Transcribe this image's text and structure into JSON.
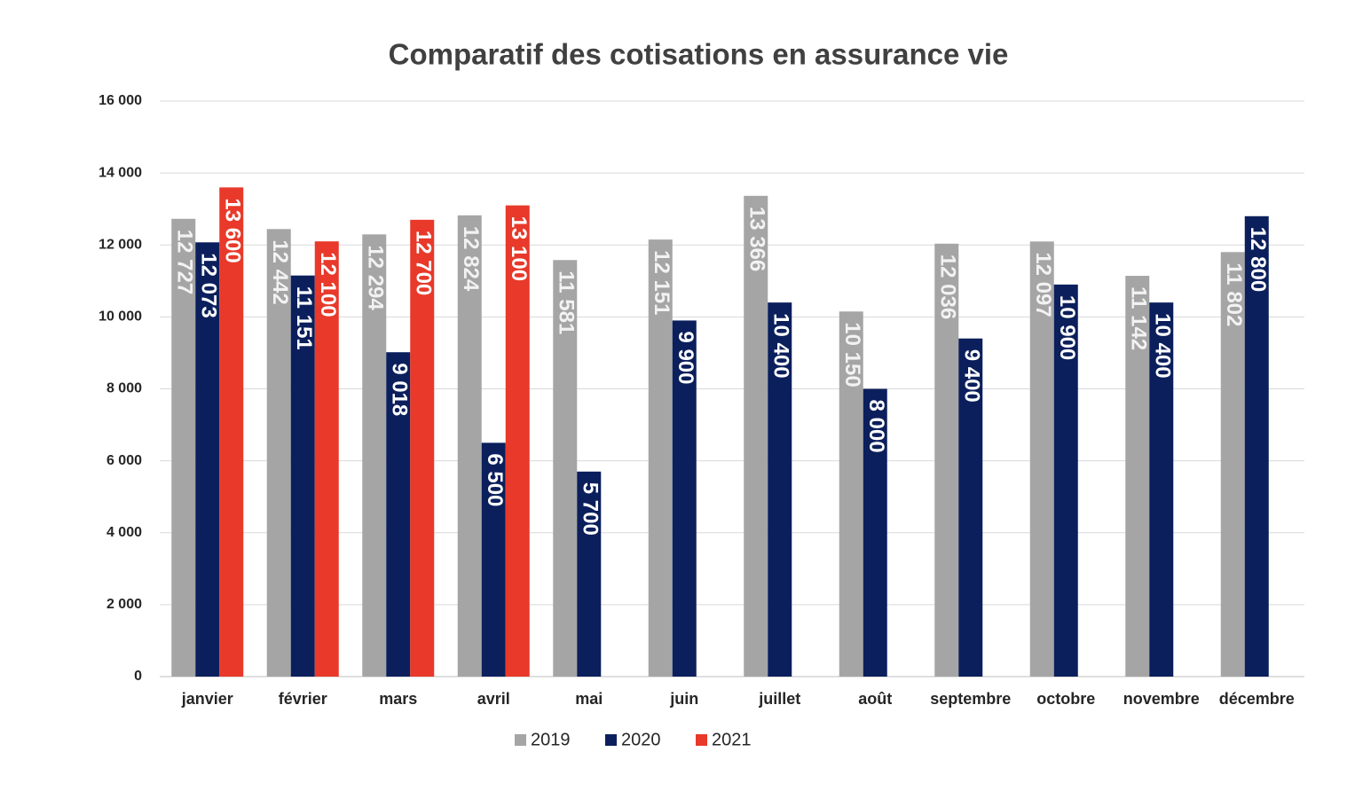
{
  "chart_data": {
    "type": "bar",
    "title": "Comparatif des cotisations en assurance vie",
    "categories": [
      "janvier",
      "février",
      "mars",
      "avril",
      "mai",
      "juin",
      "juillet",
      "août",
      "septembre",
      "octobre",
      "novembre",
      "décembre"
    ],
    "series": [
      {
        "name": "2019",
        "color": "#a5a5a5",
        "values": [
          12727,
          12442,
          12294,
          12824,
          11581,
          12151,
          13366,
          10150,
          12036,
          12097,
          11142,
          11802
        ],
        "value_labels": [
          "12 727",
          "12 442",
          "12 294",
          "12 824",
          "11 581",
          "12 151",
          "13 366",
          "10 150",
          "12 036",
          "12 097",
          "11 142",
          "11 802"
        ]
      },
      {
        "name": "2020",
        "color": "#0b1f5c",
        "values": [
          12073,
          11151,
          9018,
          6500,
          5700,
          9900,
          10400,
          8000,
          9400,
          10900,
          10400,
          12800
        ],
        "value_labels": [
          "12 073",
          "11 151",
          "9 018",
          "6 500",
          "5 700",
          "9 900",
          "10 400",
          "8 000",
          "9 400",
          "10 900",
          "10 400",
          "12 800"
        ]
      },
      {
        "name": "2021",
        "color": "#e8392a",
        "values": [
          13600,
          12100,
          12700,
          13100,
          null,
          null,
          null,
          null,
          null,
          null,
          null,
          null
        ],
        "value_labels": [
          "13 600",
          "12 100",
          "12 700",
          "13 100",
          null,
          null,
          null,
          null,
          null,
          null,
          null,
          null
        ]
      }
    ],
    "ylim": [
      0,
      16000
    ],
    "yticks": [
      0,
      {
        "value": 2000,
        "label": "2 000"
      },
      {
        "value": 4000,
        "label": "4 000"
      },
      {
        "value": 6000,
        "label": "6 000"
      },
      {
        "value": 8000,
        "label": "8 000"
      },
      {
        "value": 10000,
        "label": "10 000"
      },
      {
        "value": 12000,
        "label": "12 000"
      },
      {
        "value": 14000,
        "label": "14 000"
      },
      {
        "value": 16000,
        "label": "16 000"
      }
    ],
    "grid": true,
    "legend": "bottom"
  }
}
